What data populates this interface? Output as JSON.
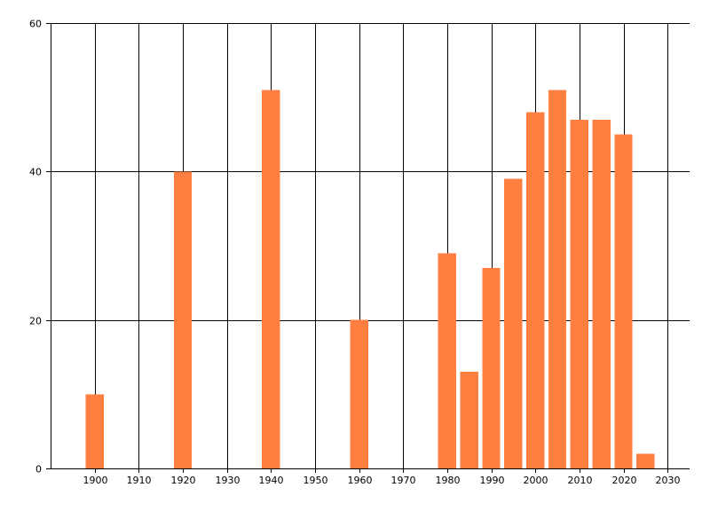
{
  "chart_data": {
    "type": "bar",
    "title": "",
    "xlabel": "",
    "ylabel": "",
    "x": [
      1900,
      1920,
      1940,
      1960,
      1980,
      1985,
      1990,
      1995,
      2000,
      2005,
      2010,
      2015,
      2020,
      2025
    ],
    "values": [
      10,
      40,
      51,
      20,
      29,
      13,
      27,
      39,
      48,
      51,
      47,
      47,
      45,
      2
    ],
    "xlim": [
      1890,
      2035
    ],
    "ylim": [
      0,
      60
    ],
    "x_ticks": [
      1900,
      1910,
      1920,
      1930,
      1940,
      1950,
      1960,
      1970,
      1980,
      1990,
      2000,
      2010,
      2020,
      2030
    ],
    "y_ticks": [
      0,
      20,
      40,
      60
    ],
    "x_tick_labels": [
      "1900",
      "1910",
      "1920",
      "1930",
      "1940",
      "1950",
      "1960",
      "1970",
      "1980",
      "1990",
      "2000",
      "2010",
      "2020",
      "2030"
    ],
    "y_tick_labels": [
      "0",
      "20",
      "40",
      "60"
    ],
    "bar_color": "#FF7F40",
    "grid": true,
    "legend": "none"
  }
}
